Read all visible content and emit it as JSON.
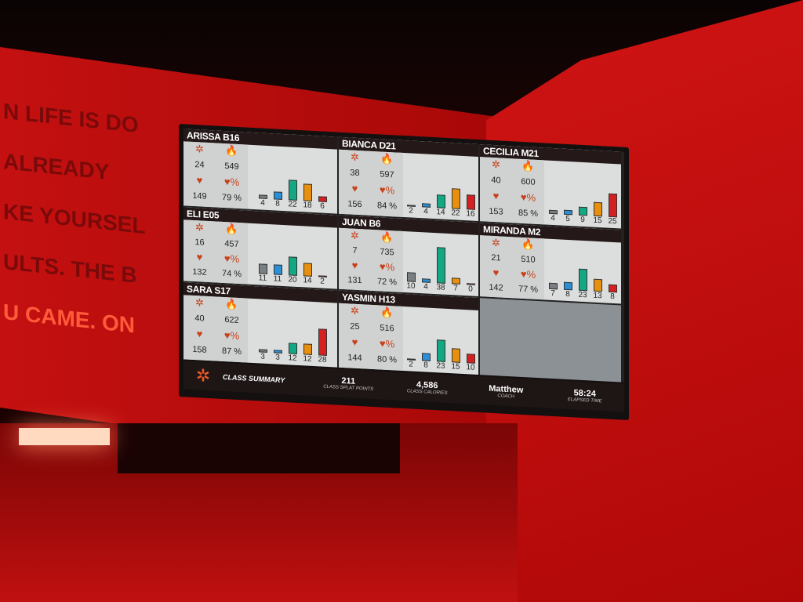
{
  "wall_text": [
    "N LIFE IS DO",
    "ALREADY",
    "KE YOURSEL",
    "ULTS. THE B",
    "U CAME. ON"
  ],
  "bar_colors": [
    "#7a7f83",
    "#2a8fd6",
    "#14a882",
    "#e8900e",
    "#d42020"
  ],
  "members": [
    {
      "name": "ARISSA B16",
      "splat": "24",
      "calories": "549",
      "hr": "149",
      "pct": "79 %",
      "zones": [
        4,
        8,
        22,
        18,
        6
      ]
    },
    {
      "name": "BIANCA D21",
      "splat": "38",
      "calories": "597",
      "hr": "156",
      "pct": "84 %",
      "zones": [
        2,
        4,
        14,
        22,
        16
      ]
    },
    {
      "name": "CECILIA M21",
      "splat": "40",
      "calories": "600",
      "hr": "153",
      "pct": "85 %",
      "zones": [
        4,
        5,
        9,
        15,
        25
      ]
    },
    {
      "name": "ELI E05",
      "splat": "16",
      "calories": "457",
      "hr": "132",
      "pct": "74 %",
      "zones": [
        11,
        11,
        20,
        14,
        2
      ]
    },
    {
      "name": "JUAN B6",
      "splat": "7",
      "calories": "735",
      "hr": "131",
      "pct": "72 %",
      "zones": [
        10,
        4,
        38,
        7,
        0
      ]
    },
    {
      "name": "MIRANDA M2",
      "splat": "21",
      "calories": "510",
      "hr": "142",
      "pct": "77 %",
      "zones": [
        7,
        8,
        23,
        13,
        8
      ]
    },
    {
      "name": "SARA S17",
      "splat": "40",
      "calories": "622",
      "hr": "158",
      "pct": "87 %",
      "zones": [
        3,
        3,
        12,
        12,
        28
      ]
    },
    {
      "name": "YASMIN H13",
      "splat": "25",
      "calories": "516",
      "hr": "144",
      "pct": "80 %",
      "zones": [
        2,
        8,
        23,
        15,
        10
      ]
    }
  ],
  "footer": {
    "title": "CLASS SUMMARY",
    "splat_points": "211",
    "splat_label": "CLASS SPLAT POINTS",
    "calories": "4,586",
    "calories_label": "CLASS CALORIES",
    "coach": "Matthew",
    "coach_label": "COACH",
    "elapsed": "58:24",
    "elapsed_label": "ELAPSED TIME"
  }
}
